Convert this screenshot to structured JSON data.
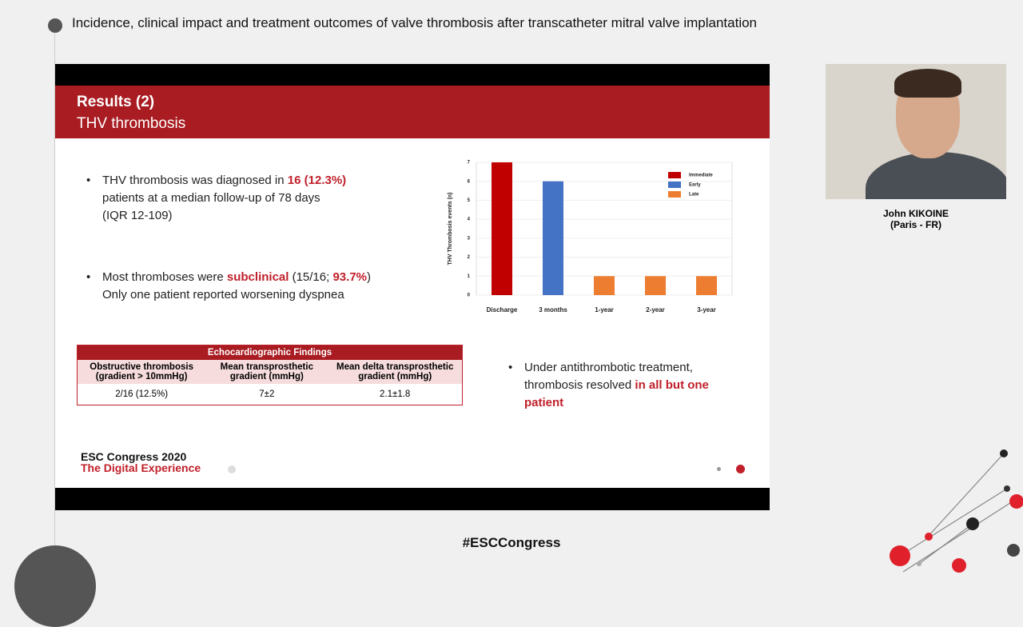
{
  "header": {
    "title": "Incidence, clinical impact and treatment outcomes of valve thrombosis after transcatheter mitral valve implantation"
  },
  "slide": {
    "heading": "Results (2)",
    "subheading": "THV thrombosis",
    "bullet1": {
      "line1": "THV thrombosis was diagnosed in ",
      "highlight": "16 (12.3%)",
      "line2": "patients at a median follow-up of 78 days",
      "line3": "(IQR 12-109)"
    },
    "bullet2": {
      "part1": "Most thromboses were ",
      "highlight1": "subclinical",
      "part2": " (15/16; ",
      "highlight2": "93.7%",
      "part3": ")",
      "line2": "Only one patient reported worsening dyspnea"
    },
    "bullet3": {
      "line1": "Under antithrombotic treatment,",
      "part2": "thrombosis resolved ",
      "highlight1": "in all but one",
      "highlight2": "patient"
    },
    "table": {
      "title": "Echocardiographic Findings",
      "columns": [
        "Obstructive thrombosis (gradient > 10mmHg)",
        "Mean transprosthetic gradient (mmHg)",
        "Mean delta transprosthetic gradient (mmHg)"
      ],
      "rows": [
        [
          "2/16 (12.5%)",
          "7±2",
          "2.1±1.8"
        ]
      ]
    },
    "footer": {
      "line1": "ESC Congress 2020",
      "line2": "The Digital Experience"
    }
  },
  "chart_data": {
    "type": "bar",
    "y_label": "THV Thrombosis events (n)",
    "categories": [
      "Discharge",
      "3 months",
      "1-year",
      "2-year",
      "3-year"
    ],
    "series": [
      {
        "name": "Immediate",
        "color": "#c00000",
        "values": [
          7,
          null,
          null,
          null,
          null
        ]
      },
      {
        "name": "Early",
        "color": "#4472c4",
        "values": [
          null,
          6,
          null,
          null,
          null
        ]
      },
      {
        "name": "Late",
        "color": "#ed7d31",
        "values": [
          null,
          null,
          1,
          1,
          1
        ]
      }
    ],
    "ylim": [
      0,
      7
    ],
    "yticks": [
      0,
      1,
      2,
      3,
      4,
      5,
      6,
      7
    ],
    "grid": true,
    "legend": "top-right"
  },
  "speaker": {
    "name": "John KIKOINE",
    "location": "(Paris - FR)"
  },
  "hashtag": "#ESCCongress"
}
